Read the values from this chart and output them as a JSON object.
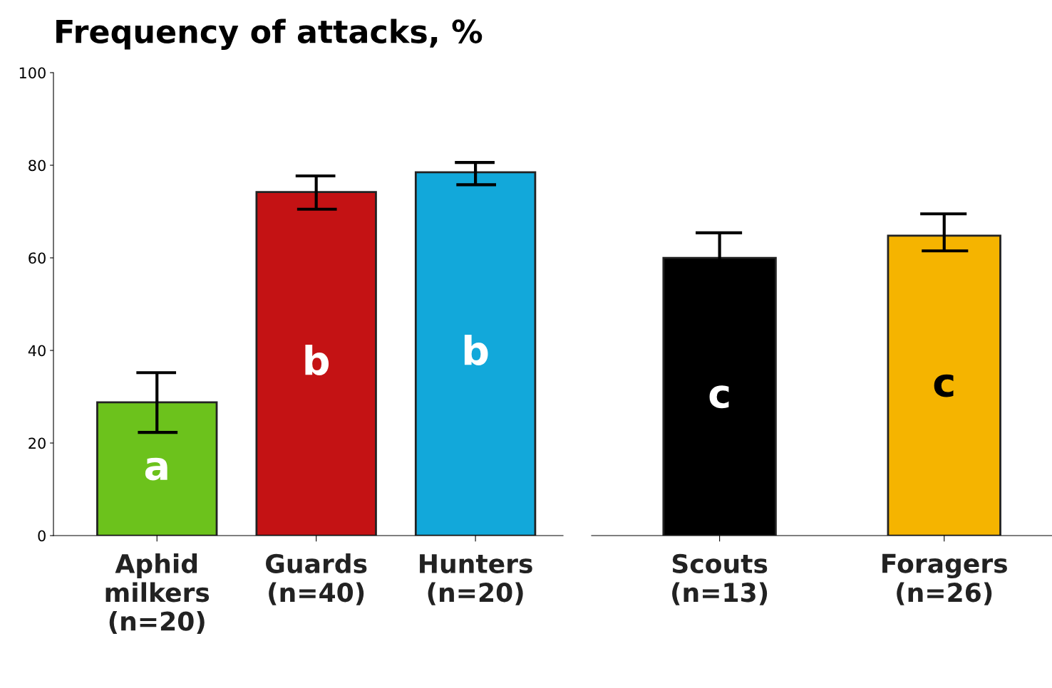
{
  "chart_data": [
    {
      "type": "bar",
      "title": "Frequency of attacks, %",
      "categories": [
        "Aphid\nmilkers\n(n=20)",
        "Guards\n(n=40)",
        "Hunters\n(n=20)"
      ],
      "values": [
        28.8,
        74.2,
        78.5
      ],
      "colors": [
        "#6cc21c",
        "#c41214",
        "#12a8da"
      ],
      "errors": [
        [
          22.3,
          35.2
        ],
        [
          70.5,
          77.7
        ],
        [
          75.8,
          80.6
        ]
      ],
      "annotations": [
        "a",
        "b",
        "b"
      ],
      "ylim": [
        0,
        100
      ],
      "yticks": [
        0,
        20,
        40,
        60,
        80,
        100
      ],
      "grid": false,
      "legend": false
    },
    {
      "type": "bar",
      "categories": [
        "Scouts\n(n=13)",
        "Foragers\n(n=26)"
      ],
      "values": [
        60,
        64.8
      ],
      "colors": [
        "#000000",
        "#f5b400"
      ],
      "errors": [
        [
          60,
          65.4
        ],
        [
          61.5,
          69.5
        ]
      ],
      "annotations": [
        "c",
        "c"
      ],
      "ylim": [
        0,
        100
      ],
      "tick_labels": "x",
      "grid": false,
      "legend": false
    }
  ]
}
